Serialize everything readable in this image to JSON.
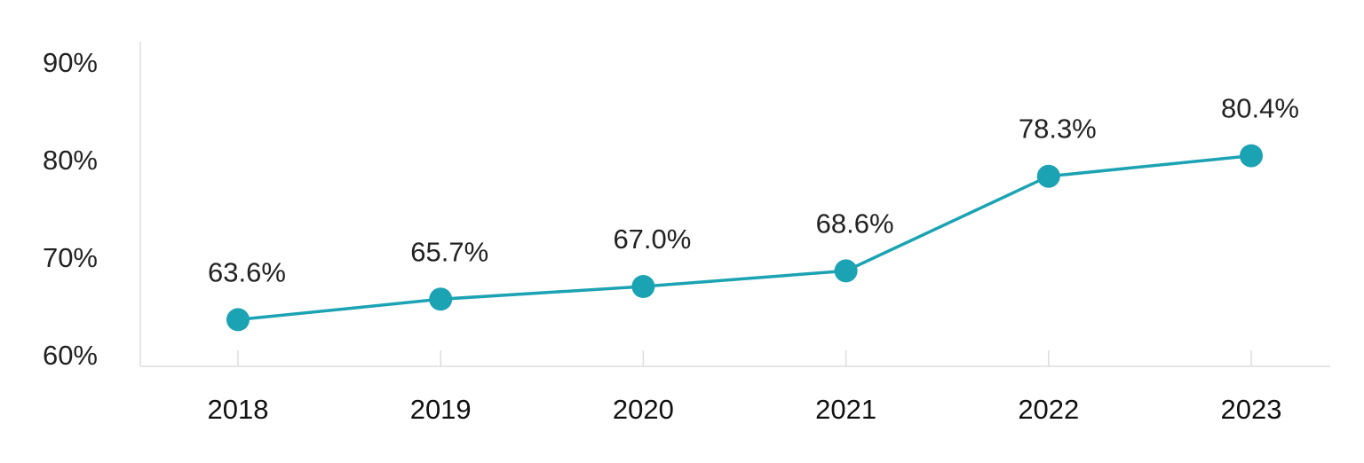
{
  "chart_data": {
    "type": "line",
    "title": "",
    "xlabel": "",
    "ylabel": "",
    "categories": [
      "2018",
      "2019",
      "2020",
      "2021",
      "2022",
      "2023"
    ],
    "series": [
      {
        "values": [
          63.6,
          65.7,
          67.0,
          68.6,
          78.3,
          80.4
        ],
        "labels": [
          "63.6%",
          "65.7%",
          "67.0%",
          "68.6%",
          "78.3%",
          "80.4%"
        ],
        "color": "#1ba3b3"
      }
    ],
    "ylim": [
      60,
      90
    ],
    "yticks": [
      60,
      70,
      80,
      90
    ],
    "ytick_labels": [
      "60%",
      "70%",
      "80%",
      "90%"
    ],
    "grid": false,
    "legend": "none",
    "axis_color": "#dddddd"
  }
}
